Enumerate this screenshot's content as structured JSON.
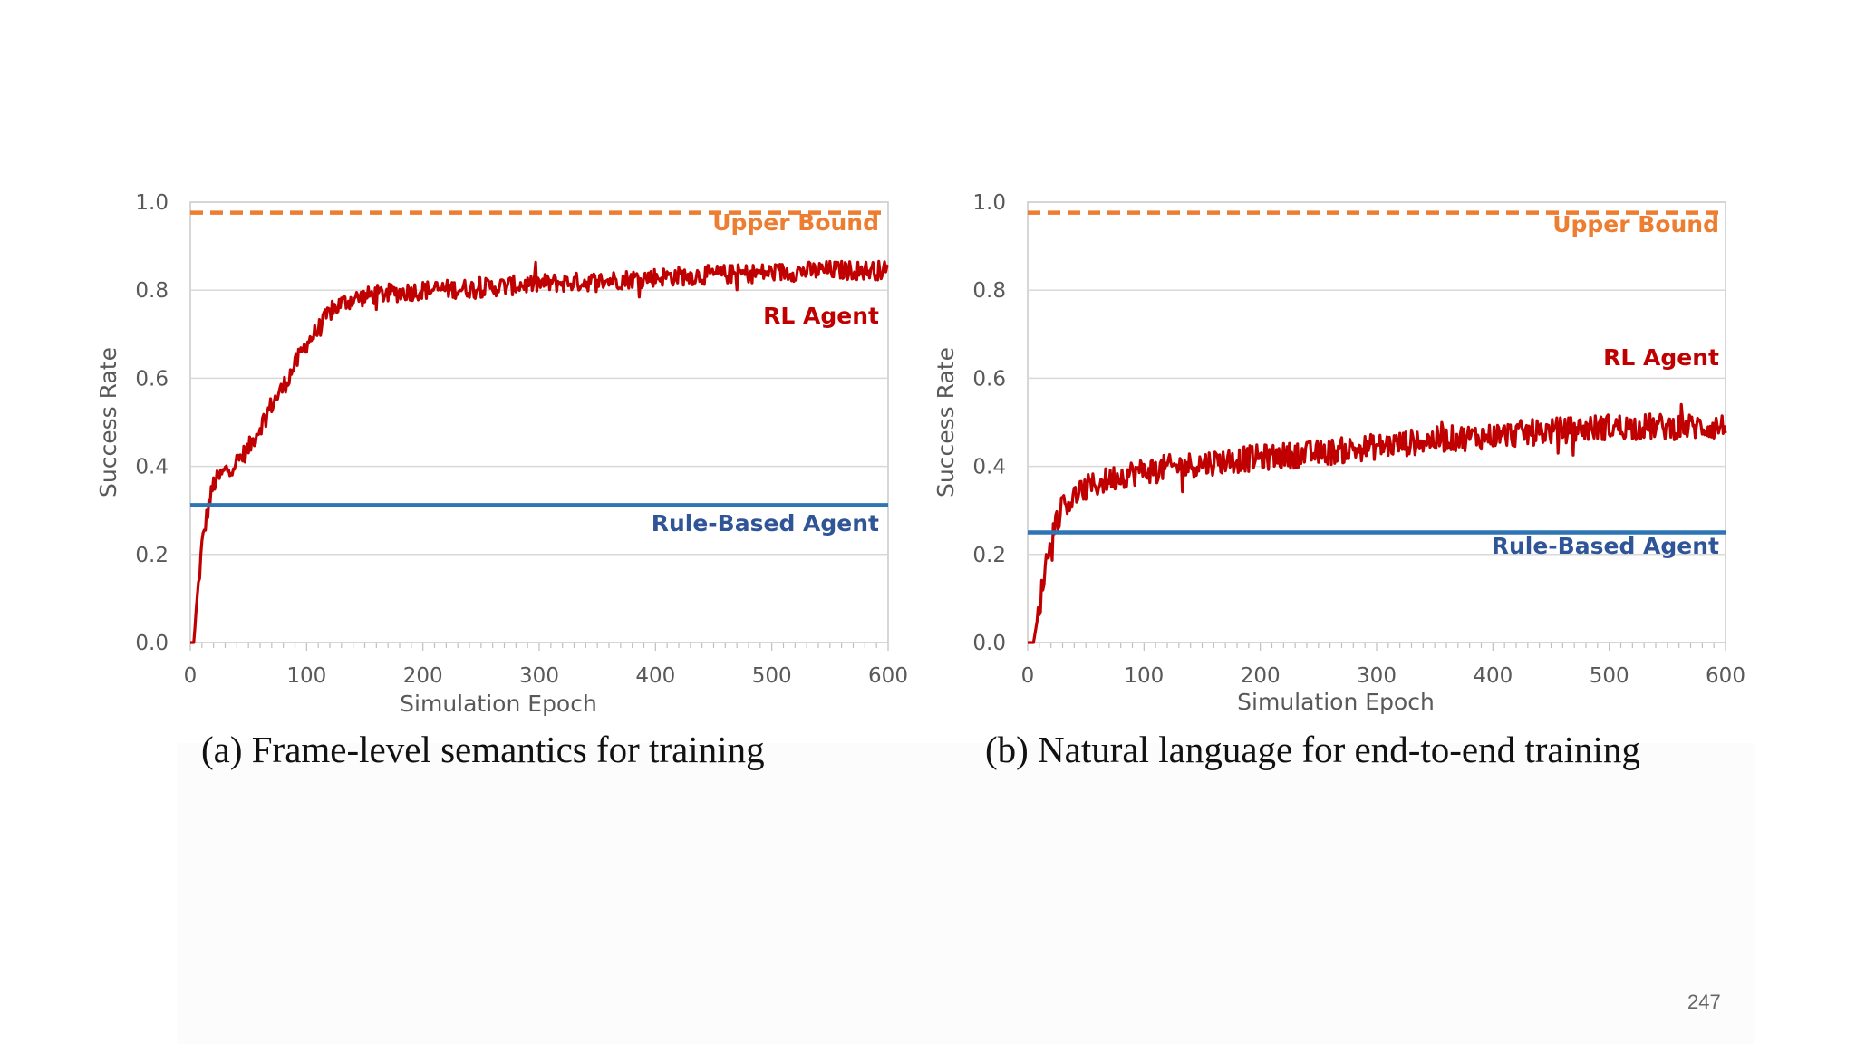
{
  "slide": {
    "page_number": "247"
  },
  "chart_data": [
    {
      "type": "line",
      "caption": "(a) Frame-level semantics for training",
      "xlabel": "Simulation Epoch",
      "ylabel": "Success Rate",
      "xlim": [
        0,
        600
      ],
      "ylim": [
        0.0,
        1.0
      ],
      "xticks": [
        "0",
        "100",
        "200",
        "300",
        "400",
        "500",
        "600"
      ],
      "yticks": [
        "0.0",
        "0.2",
        "0.4",
        "0.6",
        "0.8",
        "1.0"
      ],
      "grid": true,
      "series": [
        {
          "name": "Upper Bound",
          "style": "dashed",
          "color": "#ed7d31",
          "constant": 0.976
        },
        {
          "name": "RL Agent",
          "style": "noisy",
          "color": "#c00000",
          "x": [
            0,
            3,
            6,
            10,
            15,
            20,
            30,
            40,
            50,
            60,
            70,
            80,
            90,
            100,
            110,
            120,
            130,
            140,
            160,
            200,
            250,
            300,
            350,
            400,
            450,
            500,
            550,
            600
          ],
          "values": [
            0.0,
            0.0,
            0.1,
            0.22,
            0.3,
            0.36,
            0.39,
            0.41,
            0.44,
            0.49,
            0.54,
            0.58,
            0.63,
            0.68,
            0.71,
            0.75,
            0.77,
            0.78,
            0.79,
            0.8,
            0.805,
            0.815,
            0.82,
            0.83,
            0.835,
            0.84,
            0.845,
            0.845
          ],
          "noise": 0.022
        },
        {
          "name": "Rule-Based Agent",
          "style": "solid",
          "color": "#2e75b6",
          "constant": 0.312
        }
      ],
      "annotations": [
        {
          "text": "Upper Bound",
          "color": "#ed7d31"
        },
        {
          "text": "RL Agent",
          "color": "#c00000"
        },
        {
          "text": "Rule-Based Agent",
          "color": "#2f5597"
        }
      ]
    },
    {
      "type": "line",
      "caption": "(b) Natural language for end-to-end training",
      "xlabel": "Simulation Epoch",
      "ylabel": "Success Rate",
      "xlim": [
        0,
        600
      ],
      "ylim": [
        0.0,
        1.0
      ],
      "xticks": [
        "0",
        "100",
        "200",
        "300",
        "400",
        "500",
        "600"
      ],
      "yticks": [
        "0.0",
        "0.2",
        "0.4",
        "0.6",
        "0.8",
        "1.0"
      ],
      "grid": true,
      "series": [
        {
          "name": "Upper Bound",
          "style": "dashed",
          "color": "#ed7d31",
          "constant": 0.976
        },
        {
          "name": "RL Agent",
          "style": "noisy",
          "color": "#c00000",
          "x": [
            0,
            5,
            10,
            15,
            20,
            25,
            30,
            40,
            50,
            60,
            80,
            100,
            130,
            160,
            200,
            250,
            300,
            350,
            400,
            450,
            500,
            550,
            600
          ],
          "values": [
            0.0,
            0.0,
            0.08,
            0.17,
            0.24,
            0.28,
            0.31,
            0.33,
            0.35,
            0.36,
            0.38,
            0.39,
            0.4,
            0.41,
            0.42,
            0.43,
            0.445,
            0.46,
            0.47,
            0.48,
            0.49,
            0.49,
            0.49
          ],
          "noise": 0.03
        },
        {
          "name": "Rule-Based Agent",
          "style": "solid",
          "color": "#2e75b6",
          "constant": 0.25
        }
      ],
      "annotations": [
        {
          "text": "Upper Bound",
          "color": "#ed7d31"
        },
        {
          "text": "RL Agent",
          "color": "#c00000"
        },
        {
          "text": "Rule-Based Agent",
          "color": "#2f5597"
        }
      ]
    }
  ]
}
